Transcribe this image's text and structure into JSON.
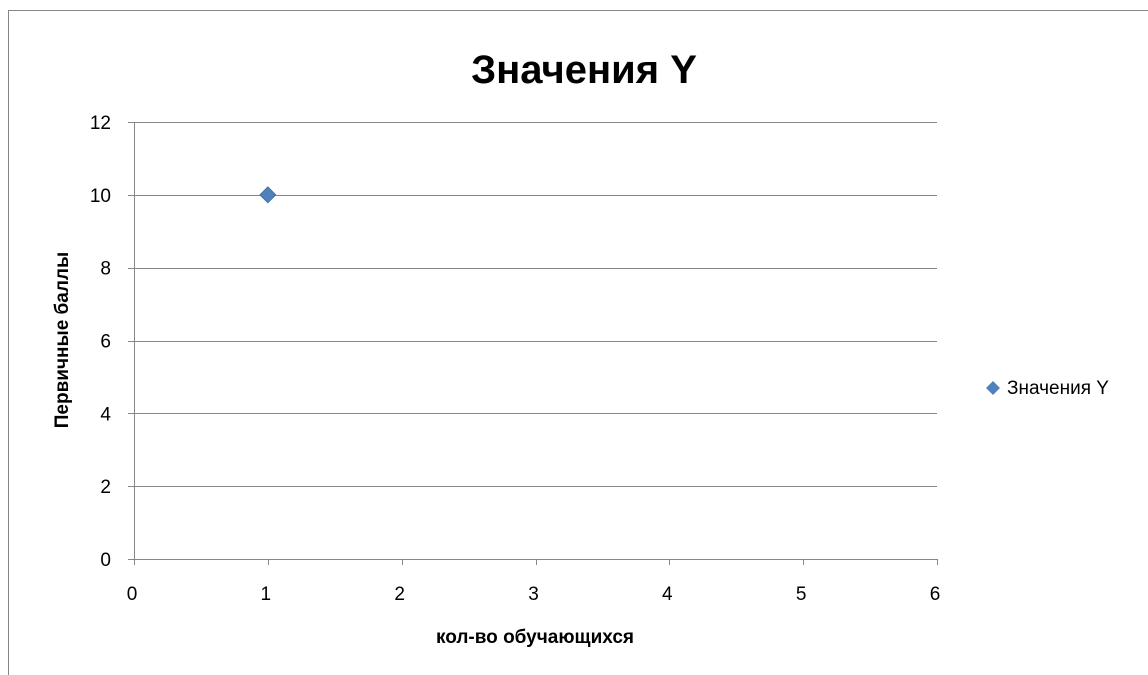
{
  "chart_data": {
    "type": "scatter",
    "title": "Значения Y",
    "xlabel": "кол-во обучающихся",
    "ylabel": "Первичные баллы",
    "xlim": [
      0,
      6
    ],
    "ylim": [
      0,
      12
    ],
    "xticks": [
      0,
      1,
      2,
      3,
      4,
      5,
      6
    ],
    "yticks": [
      0,
      2,
      4,
      6,
      8,
      10,
      12
    ],
    "grid": "horizontal",
    "legend_position": "right",
    "series": [
      {
        "name": "Значения Y",
        "color": "#4f81bd",
        "marker": "diamond",
        "points": [
          {
            "x": 1,
            "y": 10
          }
        ]
      }
    ]
  }
}
